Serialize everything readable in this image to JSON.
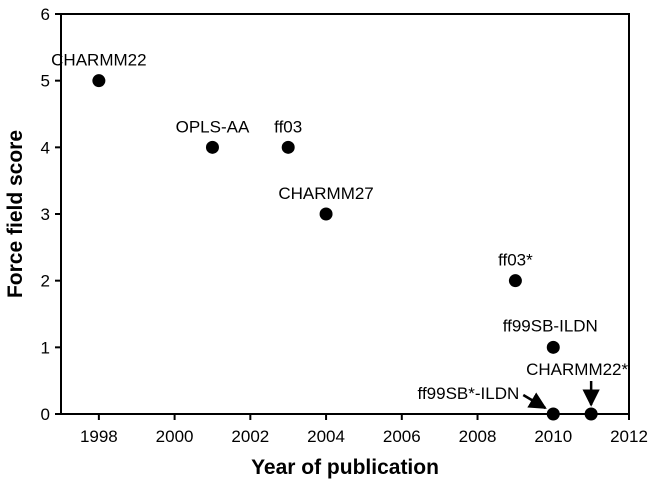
{
  "chart_data": {
    "type": "scatter",
    "xlabel": "Year of publication",
    "ylabel": "Force field score",
    "xlim": [
      1997,
      2012
    ],
    "ylim": [
      0,
      6
    ],
    "x_ticks": [
      1998,
      2000,
      2002,
      2004,
      2006,
      2008,
      2010,
      2012
    ],
    "y_ticks": [
      0,
      1,
      2,
      3,
      4,
      5,
      6
    ],
    "grid": false,
    "legend": "none",
    "marker_color": "#000000",
    "points": [
      {
        "label": "CHARMM22",
        "x": 1998,
        "y": 5
      },
      {
        "label": "OPLS-AA",
        "x": 2001,
        "y": 4
      },
      {
        "label": "ff03",
        "x": 2003,
        "y": 4
      },
      {
        "label": "CHARMM27",
        "x": 2004,
        "y": 3
      },
      {
        "label": "ff03*",
        "x": 2009,
        "y": 2
      },
      {
        "label": "ff99SB-ILDN",
        "x": 2010,
        "y": 1
      },
      {
        "label": "ff99SB*-ILDN",
        "x": 2010,
        "y": 0
      },
      {
        "label": "CHARMM22*",
        "x": 2011,
        "y": 0
      }
    ]
  }
}
